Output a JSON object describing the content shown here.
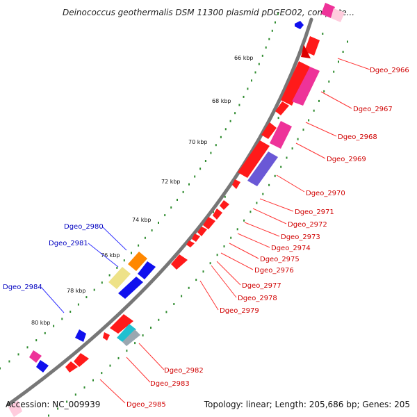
{
  "title": "Deinococcus geothermalis DSM 11300 plasmid pDGEO02, complete...",
  "footer": {
    "accession": "Accession: NC_009939",
    "summary": "Topology: linear; Length: 205,686 bp; Genes: 205"
  },
  "colors": {
    "backbone": "#777777",
    "tick": "#2e8b2e",
    "gene_forward": "#ff1a1a",
    "gene_reverse": "#1010ee",
    "label_right": "#d00000",
    "label_left": "#0000c0",
    "pink": "#ee3399",
    "purple": "#6a58d6",
    "orange": "#ff8800",
    "khaki": "#eee288",
    "cyan": "#20c0d0",
    "grey": "#9aa7b0"
  },
  "scale_labels": [
    "66 kbp",
    "68 kbp",
    "70 kbp",
    "72 kbp",
    "74 kbp",
    "76 kbp",
    "78 kbp",
    "80 kbp"
  ],
  "right_labels": [
    "Dgeo_2966",
    "Dgeo_2967",
    "Dgeo_2968",
    "Dgeo_2969",
    "Dgeo_2970",
    "Dgeo_2971",
    "Dgeo_2972",
    "Dgeo_2973",
    "Dgeo_2974",
    "Dgeo_2975",
    "Dgeo_2976",
    "Dgeo_2977",
    "Dgeo_2978",
    "Dgeo_2979",
    "Dgeo_2982",
    "Dgeo_2983",
    "Dgeo_2985"
  ],
  "left_labels": [
    "Dgeo_2980",
    "Dgeo_2981",
    "Dgeo_2984"
  ]
}
